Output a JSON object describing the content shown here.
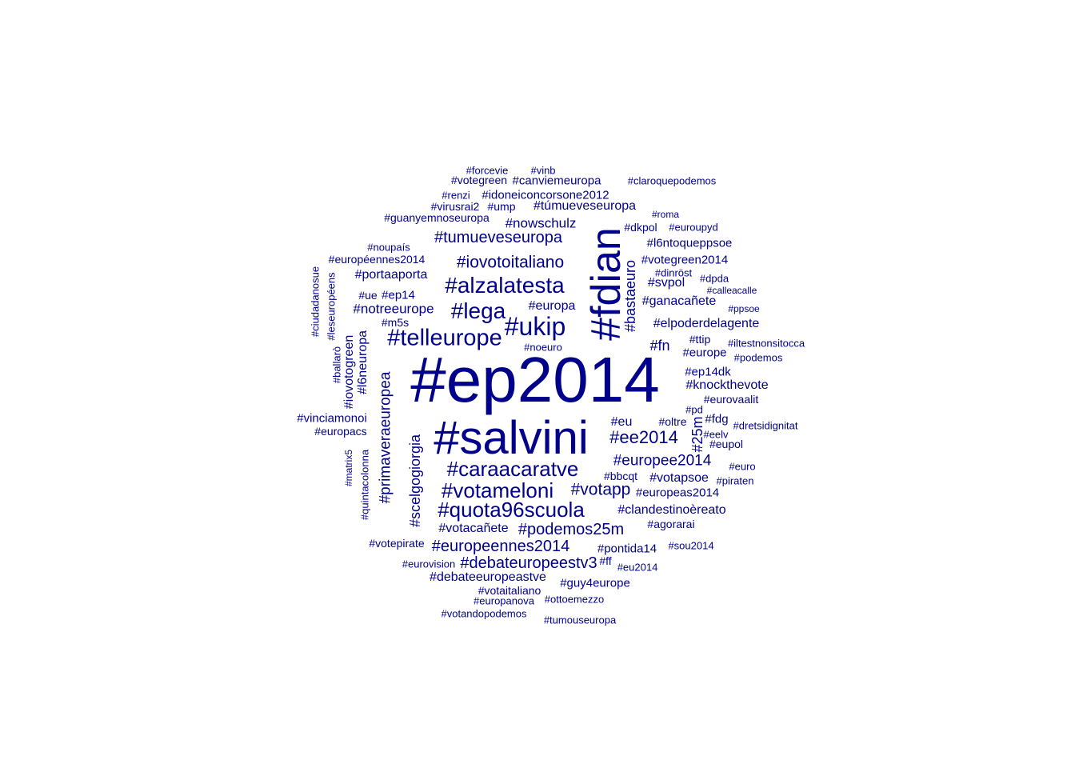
{
  "color": "#00008B",
  "words": [
    {
      "text": "#forcevie"
    },
    {
      "text": "#vinb"
    },
    {
      "text": "#votegreen"
    },
    {
      "text": "#canviemeuropa"
    },
    {
      "text": "#claroquepodemos"
    },
    {
      "text": "#renzi"
    },
    {
      "text": "#idoneiconcorsone2012"
    },
    {
      "text": "#virusrai2"
    },
    {
      "text": "#ump"
    },
    {
      "text": "#túmueveseuropa"
    },
    {
      "text": "#roma"
    },
    {
      "text": "#guanyemnoseuropa"
    },
    {
      "text": "#nowschulz"
    },
    {
      "text": "#dkpol"
    },
    {
      "text": "#euroupyd"
    },
    {
      "text": "#tumueveseuropa"
    },
    {
      "text": "#l6ntoqueppsoe"
    },
    {
      "text": "#noupaís"
    },
    {
      "text": "#européennes2014"
    },
    {
      "text": "#iovotoitaliano"
    },
    {
      "text": "#votegreen2014"
    },
    {
      "text": "#fdian"
    },
    {
      "text": "#bastaeuro"
    },
    {
      "text": "#dinröst"
    },
    {
      "text": "#portaaporta"
    },
    {
      "text": "#alzalatesta"
    },
    {
      "text": "#svpol"
    },
    {
      "text": "#dpda"
    },
    {
      "text": "#calleacalle"
    },
    {
      "text": "#ciudadanosue"
    },
    {
      "text": "#leseuropéens"
    },
    {
      "text": "#ue"
    },
    {
      "text": "#ep14"
    },
    {
      "text": "#notreeurope"
    },
    {
      "text": "#lega"
    },
    {
      "text": "#europa"
    },
    {
      "text": "#ganacañete"
    },
    {
      "text": "#ppsoe"
    },
    {
      "text": "#m5s"
    },
    {
      "text": "#ukip"
    },
    {
      "text": "#elpoderdelagente"
    },
    {
      "text": "#telleurope"
    },
    {
      "text": "#ttip"
    },
    {
      "text": "#iltestnonsitocca"
    },
    {
      "text": "#noeuro"
    },
    {
      "text": "#fn"
    },
    {
      "text": "#europe"
    },
    {
      "text": "#podemos"
    },
    {
      "text": "#ballarò"
    },
    {
      "text": "#iovotogreen"
    },
    {
      "text": "#l6neuropa"
    },
    {
      "text": "#ep2014"
    },
    {
      "text": "#ep14dk"
    },
    {
      "text": "#primaveraeuropea"
    },
    {
      "text": "#knockthevote"
    },
    {
      "text": "#eurovaalit"
    },
    {
      "text": "#pd"
    },
    {
      "text": "#vinciamonoi"
    },
    {
      "text": "#eu"
    },
    {
      "text": "#oltre"
    },
    {
      "text": "#fdg"
    },
    {
      "text": "#dretsidignitat"
    },
    {
      "text": "#europacs"
    },
    {
      "text": "#salvini"
    },
    {
      "text": "#scelgogiorgia"
    },
    {
      "text": "#25m"
    },
    {
      "text": "#eelv"
    },
    {
      "text": "#ee2014"
    },
    {
      "text": "#eupol"
    },
    {
      "text": "#matrix5"
    },
    {
      "text": "#europee2014"
    },
    {
      "text": "#euro"
    },
    {
      "text": "#caraacaratve"
    },
    {
      "text": "#bbcqt"
    },
    {
      "text": "#votapsoe"
    },
    {
      "text": "#piraten"
    },
    {
      "text": "#votameloni"
    },
    {
      "text": "#votapp"
    },
    {
      "text": "#europeas2014"
    },
    {
      "text": "#quintacolonna"
    },
    {
      "text": "#quota96scuola"
    },
    {
      "text": "#clandestinoèreato"
    },
    {
      "text": "#agorarai"
    },
    {
      "text": "#votacañete"
    },
    {
      "text": "#podemos25m"
    },
    {
      "text": "#votepirate"
    },
    {
      "text": "#europeennes2014"
    },
    {
      "text": "#pontida14"
    },
    {
      "text": "#sou2014"
    },
    {
      "text": "#eurovision"
    },
    {
      "text": "#debateuropeestv3"
    },
    {
      "text": "#ff"
    },
    {
      "text": "#eu2014"
    },
    {
      "text": "#debateeuropeastve"
    },
    {
      "text": "#guy4europe"
    },
    {
      "text": "#votaitaliano"
    },
    {
      "text": "#europanova"
    },
    {
      "text": "#ottoemezzo"
    },
    {
      "text": "#votandopodemos"
    },
    {
      "text": "#tumouseuropa"
    }
  ]
}
